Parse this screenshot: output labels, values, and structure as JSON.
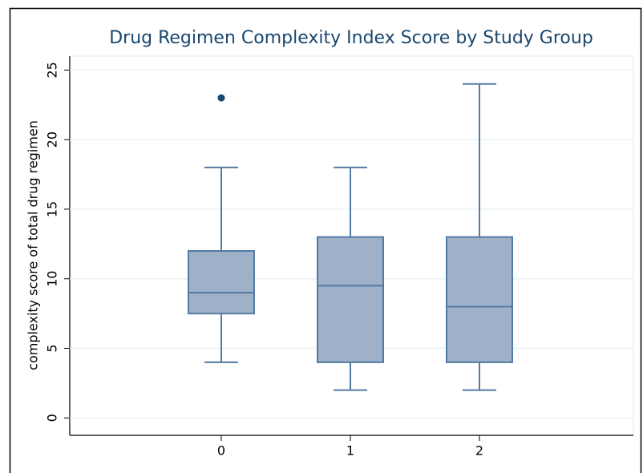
{
  "chart_data": {
    "type": "box",
    "title": "Drug Regimen Complexity Index Score by Study Group",
    "y_label": "complexity score of total drug regimen",
    "categories": [
      "0",
      "1",
      "2"
    ],
    "whisker_low": [
      4,
      2,
      2
    ],
    "q1": [
      7.5,
      4,
      4
    ],
    "median": [
      9,
      9.5,
      8
    ],
    "q3": [
      12,
      13,
      13
    ],
    "whisker_high": [
      18,
      18,
      24
    ],
    "outliers": [
      [
        23
      ],
      [],
      []
    ],
    "box_color": "#9eb1c8",
    "edge_color": "#557aa3",
    "outlier_color": "#1a476f",
    "ylim": [
      -1.25,
      26
    ],
    "yticks": [
      0,
      5,
      10,
      15,
      20,
      25
    ],
    "grid": true
  }
}
